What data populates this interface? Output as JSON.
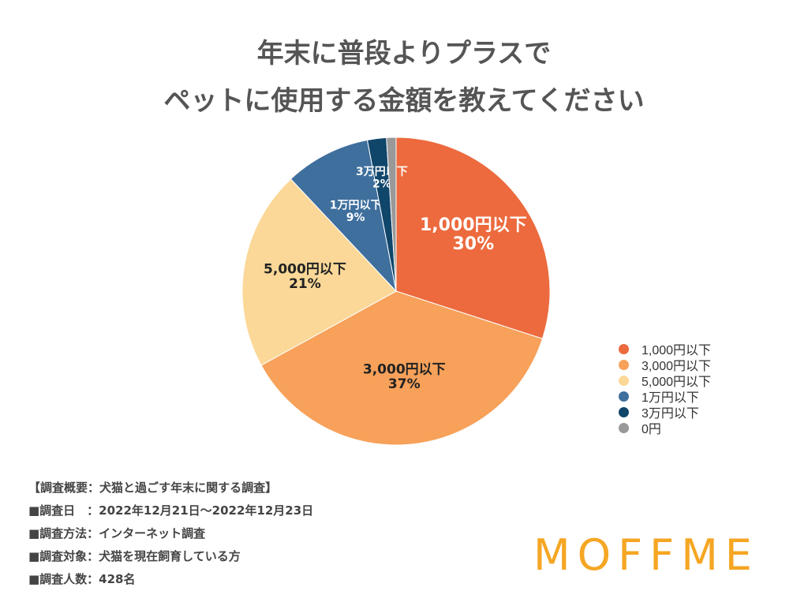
{
  "title_lines": [
    "年末に普段よりプラスで",
    "ペットに使用する金額を教えてください"
  ],
  "chart_data": {
    "type": "pie",
    "title": "年末に普段よりプラスでペットに使用する金額を教えてください",
    "categories": [
      "1,000円以下",
      "3,000円以下",
      "5,000円以下",
      "1万円以下",
      "3万円以下",
      "0円"
    ],
    "values": [
      30,
      37,
      21,
      9,
      2,
      1
    ],
    "labels": [
      "1,000円以下\n30%",
      "3,000円以下\n37%",
      "5,000円以下\n21%",
      "1万円以下\n9%",
      "3万円以下\n2%",
      ""
    ],
    "colors": [
      "#ec6a3e",
      "#f7a15a",
      "#fbd898",
      "#3e6f9d",
      "#11466b",
      "#999999"
    ],
    "label_colors": [
      "#ffffff",
      "#222222",
      "#222222",
      "#ffffff",
      "#ffffff",
      "#ffffff"
    ],
    "legend_position": "right"
  },
  "notes": [
    "【調査概要：犬猫と過ごす年末に関する調査】",
    "■調査日　：2022年12月21日〜2022年12月23日",
    "■調査方法：インターネット調査",
    "■調査対象：犬猫を現在飼育している方",
    "■調査人数：428名"
  ],
  "logo": "MOFFME"
}
